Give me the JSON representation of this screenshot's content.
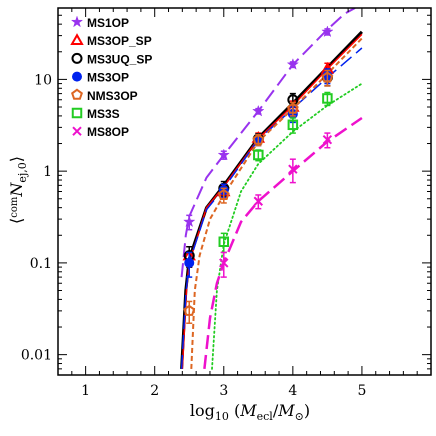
{
  "chart_data": {
    "type": "scatter",
    "title": "",
    "xlabel": "log₁₀ (M_ecl/M⊙)",
    "ylabel": "⟨com N_ej,0⟩",
    "xlabel_parts": {
      "log": "log",
      "sub": "10",
      "open": " (",
      "M1": "M",
      "ecl": "ecl",
      "slash": "/",
      "M2": "M",
      "sun": "⊙",
      "close": ")"
    },
    "ylabel_parts": {
      "open": "⟨",
      "com": "com",
      "N": "N",
      "sub": "ej,0",
      "close": "⟩"
    },
    "xlim": [
      0.6,
      6.0
    ],
    "ylim": [
      0.006,
      60
    ],
    "yscale": "log",
    "xticks": [
      "1",
      "2",
      "3",
      "4",
      "5"
    ],
    "yticks": [
      "0.01",
      "0.1",
      "1",
      "10"
    ],
    "legend_position": "top-left",
    "series": [
      {
        "name": "MS1OP",
        "color": "#9933ee",
        "marker": "star",
        "linestyle": "longdash",
        "x": [
          2.5,
          3.0,
          3.5,
          4.0,
          4.5
        ],
        "y": [
          0.28,
          1.5,
          4.5,
          14.5,
          33.0
        ],
        "yerr_low": [
          0.05,
          0.15,
          0.3,
          1.0,
          2.5
        ],
        "yerr_high": [
          0.05,
          0.15,
          0.3,
          1.0,
          2.5
        ]
      },
      {
        "name": "MS3OP_SP",
        "color": "#ff0000",
        "marker": "triangle",
        "linestyle": "solid",
        "x": [
          2.5,
          3.0,
          3.5,
          4.0,
          4.5
        ],
        "y": [
          0.12,
          0.6,
          2.3,
          5.0,
          13.0
        ],
        "yerr_low": [
          0.03,
          0.1,
          0.3,
          0.8,
          2.0
        ],
        "yerr_high": [
          0.03,
          0.1,
          0.3,
          0.8,
          2.0
        ]
      },
      {
        "name": "MS3UQ_SP",
        "color": "#000000",
        "marker": "circle-open",
        "linestyle": "solid",
        "x": [
          2.5,
          3.0,
          3.5,
          4.0,
          4.5
        ],
        "y": [
          0.12,
          0.65,
          2.25,
          6.0,
          10.5
        ],
        "yerr_low": [
          0.03,
          0.12,
          0.3,
          1.0,
          2.0
        ],
        "yerr_high": [
          0.03,
          0.12,
          0.3,
          1.0,
          2.0
        ]
      },
      {
        "name": "MS3OP",
        "color": "#0022ee",
        "marker": "circle-filled",
        "linestyle": "longdash",
        "x": [
          2.5,
          3.0,
          3.5,
          4.0,
          4.5
        ],
        "y": [
          0.1,
          0.62,
          2.2,
          4.2,
          11.0
        ],
        "yerr_low": [
          0.03,
          0.1,
          0.3,
          0.8,
          2.0
        ],
        "yerr_high": [
          0.03,
          0.1,
          0.3,
          0.8,
          2.0
        ]
      },
      {
        "name": "NMS3OP",
        "color": "#dd6622",
        "marker": "pentagon",
        "linestyle": "shortdash",
        "x": [
          2.5,
          3.0,
          3.5,
          4.0,
          4.5
        ],
        "y": [
          0.03,
          0.55,
          2.2,
          4.8,
          10.5
        ],
        "yerr_low": [
          0.008,
          0.1,
          0.3,
          0.8,
          2.0
        ],
        "yerr_high": [
          0.008,
          0.1,
          0.3,
          0.8,
          2.0
        ]
      },
      {
        "name": "MS3S",
        "color": "#22cc22",
        "marker": "square-open",
        "linestyle": "dotted",
        "x": [
          3.0,
          3.5,
          4.0,
          4.5
        ],
        "y": [
          0.17,
          1.5,
          3.2,
          6.2
        ],
        "yerr_low": [
          0.04,
          0.2,
          0.6,
          1.0
        ],
        "yerr_high": [
          0.04,
          0.2,
          0.6,
          1.0
        ]
      },
      {
        "name": "MS8OP",
        "color": "#ee11cc",
        "marker": "cross",
        "linestyle": "longdash",
        "x": [
          3.0,
          3.5,
          4.0,
          4.5
        ],
        "y": [
          0.1,
          0.47,
          1.05,
          2.2
        ],
        "yerr_low": [
          0.03,
          0.08,
          0.3,
          0.4
        ],
        "yerr_high": [
          0.03,
          0.08,
          0.3,
          0.4
        ]
      }
    ],
    "fit_curves": [
      {
        "series": "MS1OP",
        "color": "#9933ee",
        "linestyle": "longdash",
        "width": 2,
        "x": [
          2.39,
          2.45,
          2.5,
          2.75,
          3.0,
          3.5,
          4.0,
          4.5,
          4.75,
          4.9
        ],
        "y": [
          0.07,
          0.2,
          0.32,
          0.85,
          1.5,
          4.5,
          14.5,
          35,
          52,
          60
        ]
      },
      {
        "series": "MS3UQ_SP",
        "color": "#000000",
        "linestyle": "solid",
        "width": 3,
        "x": [
          2.39,
          2.45,
          2.5,
          2.75,
          3.0,
          3.5,
          4.0,
          4.5,
          5.0
        ],
        "y": [
          0.007,
          0.05,
          0.11,
          0.4,
          0.7,
          2.3,
          5.5,
          13.5,
          33
        ]
      },
      {
        "series": "MS3OP_SP",
        "color": "#ff0000",
        "linestyle": "solid",
        "width": 1.5,
        "x": [
          2.4,
          2.46,
          2.5,
          2.75,
          3.0,
          3.5,
          4.0,
          4.5,
          5.0
        ],
        "y": [
          0.007,
          0.05,
          0.1,
          0.4,
          0.68,
          2.25,
          5.2,
          13,
          31
        ]
      },
      {
        "series": "MS3OP",
        "color": "#0022ee",
        "linestyle": "longdash",
        "width": 1.5,
        "x": [
          2.39,
          2.45,
          2.5,
          2.75,
          3.0,
          3.5,
          4.0,
          4.5,
          5.0
        ],
        "y": [
          0.007,
          0.045,
          0.1,
          0.38,
          0.65,
          2.2,
          4.8,
          10.5,
          22
        ]
      },
      {
        "series": "NMS3OP",
        "color": "#dd6622",
        "linestyle": "shortdash",
        "width": 2,
        "x": [
          2.53,
          2.58,
          2.65,
          2.8,
          3.0,
          3.5,
          4.0,
          4.5,
          5.0
        ],
        "y": [
          0.007,
          0.05,
          0.12,
          0.3,
          0.55,
          2.1,
          4.8,
          11.5,
          28
        ]
      },
      {
        "series": "MS3S",
        "color": "#22cc22",
        "linestyle": "dotted",
        "width": 1.8,
        "x": [
          2.83,
          2.9,
          3.0,
          3.25,
          3.5,
          4.0,
          4.5,
          5.0
        ],
        "y": [
          0.007,
          0.05,
          0.16,
          0.6,
          1.2,
          2.7,
          5.2,
          9
        ]
      },
      {
        "series": "MS8OP",
        "color": "#ee11cc",
        "linestyle": "longdash",
        "width": 2.5,
        "x": [
          2.72,
          2.8,
          2.9,
          3.0,
          3.25,
          3.5,
          4.0,
          4.5,
          5.0
        ],
        "y": [
          0.007,
          0.025,
          0.06,
          0.1,
          0.28,
          0.47,
          1.0,
          2.1,
          3.8
        ]
      }
    ]
  }
}
